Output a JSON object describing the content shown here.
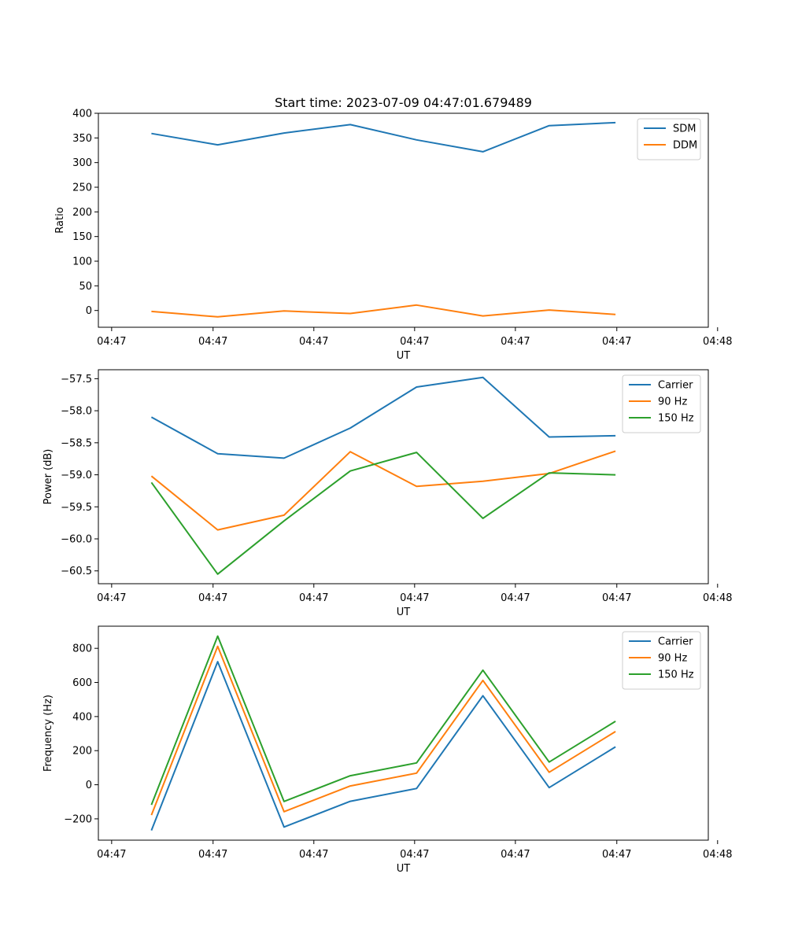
{
  "figure_title": "Start time: 2023-07-09 04:47:01.679489",
  "colors": {
    "blue": "#1f77b4",
    "orange": "#ff7f0e",
    "green": "#2ca02c"
  },
  "chart_data": [
    {
      "type": "line",
      "title": "Start time: 2023-07-09 04:47:01.679489",
      "xlabel": "UT",
      "ylabel": "Ratio",
      "x": [
        1,
        2,
        3,
        4,
        5,
        6,
        7,
        8
      ],
      "xlim": [
        0.2,
        9.4
      ],
      "xticks": [
        0.4,
        1.93,
        3.45,
        4.97,
        6.49,
        8.02,
        9.54
      ],
      "xtick_labels": [
        "04:47",
        "04:47",
        "04:47",
        "04:47",
        "04:47",
        "04:47",
        "04:48"
      ],
      "ylim": [
        -34,
        400
      ],
      "yticks": [
        0,
        50,
        100,
        150,
        200,
        250,
        300,
        350,
        400
      ],
      "ytick_labels": [
        "0",
        "50",
        "100",
        "150",
        "200",
        "250",
        "300",
        "350",
        "400"
      ],
      "legend_position": "upper-right",
      "series": [
        {
          "name": "SDM",
          "color": "#1f77b4",
          "values": [
            359,
            336,
            360,
            377,
            346,
            322,
            375,
            381
          ]
        },
        {
          "name": "DDM",
          "color": "#ff7f0e",
          "values": [
            -2,
            -13,
            -1,
            -6,
            11,
            -11,
            1,
            -8
          ]
        }
      ]
    },
    {
      "type": "line",
      "title": "",
      "xlabel": "UT",
      "ylabel": "Power (dB)",
      "x": [
        1,
        2,
        3,
        4,
        5,
        6,
        7,
        8
      ],
      "xlim": [
        0.2,
        9.4
      ],
      "xticks": [
        0.4,
        1.93,
        3.45,
        4.97,
        6.49,
        8.02,
        9.54
      ],
      "xtick_labels": [
        "04:47",
        "04:47",
        "04:47",
        "04:47",
        "04:47",
        "04:47",
        "04:48"
      ],
      "ylim": [
        -60.7,
        -57.36
      ],
      "yticks": [
        -60.5,
        -60.0,
        -59.5,
        -59.0,
        -58.5,
        -58.0,
        -57.5
      ],
      "ytick_labels": [
        "−60.5",
        "−60.0",
        "−59.5",
        "−59.0",
        "−58.5",
        "−58.0",
        "−57.5"
      ],
      "legend_position": "upper-right",
      "series": [
        {
          "name": "Carrier",
          "color": "#1f77b4",
          "values": [
            -58.1,
            -58.67,
            -58.74,
            -58.27,
            -57.63,
            -57.48,
            -58.41,
            -58.39
          ]
        },
        {
          "name": "90 Hz",
          "color": "#ff7f0e",
          "values": [
            -59.02,
            -59.86,
            -59.63,
            -58.64,
            -59.18,
            -59.1,
            -58.98,
            -58.63
          ]
        },
        {
          "name": "150 Hz",
          "color": "#2ca02c",
          "values": [
            -59.12,
            -60.55,
            -59.72,
            -58.94,
            -58.65,
            -59.68,
            -58.97,
            -59.0
          ]
        }
      ]
    },
    {
      "type": "line",
      "title": "",
      "xlabel": "UT",
      "ylabel": "Frequency (Hz)",
      "x": [
        1,
        2,
        3,
        4,
        5,
        6,
        7,
        8
      ],
      "xlim": [
        0.2,
        9.4
      ],
      "xticks": [
        0.4,
        1.93,
        3.45,
        4.97,
        6.49,
        8.02,
        9.54
      ],
      "xtick_labels": [
        "04:47",
        "04:47",
        "04:47",
        "04:47",
        "04:47",
        "04:47",
        "04:48"
      ],
      "ylim": [
        -325,
        930
      ],
      "yticks": [
        -200,
        0,
        200,
        400,
        600,
        800
      ],
      "ytick_labels": [
        "−200",
        "0",
        "200",
        "400",
        "600",
        "800"
      ],
      "legend_position": "upper-right",
      "series": [
        {
          "name": "Carrier",
          "color": "#1f77b4",
          "values": [
            -268,
            722,
            -248,
            -97,
            -22,
            522,
            -17,
            222
          ]
        },
        {
          "name": "90 Hz",
          "color": "#ff7f0e",
          "values": [
            -178,
            812,
            -158,
            -7,
            68,
            612,
            73,
            312
          ]
        },
        {
          "name": "150 Hz",
          "color": "#2ca02c",
          "values": [
            -118,
            872,
            -98,
            53,
            128,
            672,
            133,
            372
          ]
        }
      ]
    }
  ]
}
